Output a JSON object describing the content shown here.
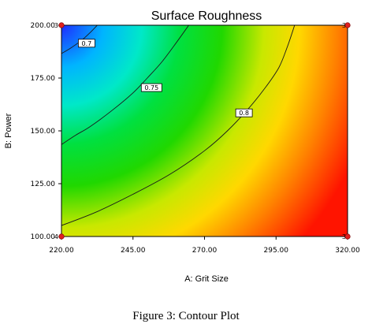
{
  "caption": "Figure 3: Contour Plot",
  "chart_data": {
    "type": "contour",
    "title": "Surface Roughness",
    "xlabel": "A: Grit Size",
    "ylabel": "B: Power",
    "xlim": [
      220,
      320
    ],
    "ylim": [
      100,
      200
    ],
    "x_ticks": [
      220,
      245,
      270,
      295,
      320
    ],
    "y_ticks": [
      100,
      125,
      150,
      175,
      200
    ],
    "x_tick_labels": [
      "220.00",
      "245.00",
      "270.00",
      "295.00",
      "320.00"
    ],
    "y_tick_labels": [
      "100.00",
      "125.00",
      "150.00",
      "175.00",
      "200.00"
    ],
    "contours": [
      {
        "level_label": "0.7",
        "points": [
          [
            232.5,
            200
          ],
          [
            230,
            196.5
          ],
          [
            227,
            192.8
          ],
          [
            223,
            189
          ],
          [
            220,
            186.6
          ]
        ],
        "label_at": [
          228.8,
          191.5
        ]
      },
      {
        "level_label": "0.75",
        "points": [
          [
            264.5,
            200
          ],
          [
            260,
            191.5
          ],
          [
            255,
            182.5
          ],
          [
            250,
            175
          ],
          [
            245,
            168
          ],
          [
            238,
            160
          ],
          [
            230,
            152
          ],
          [
            225,
            148
          ],
          [
            220,
            143.5
          ]
        ],
        "label_at": [
          251.5,
          170.5
        ]
      },
      {
        "level_label": "0.8",
        "points": [
          [
            301.5,
            200
          ],
          [
            299,
            190
          ],
          [
            296,
            180
          ],
          [
            291,
            170
          ],
          [
            285,
            160
          ],
          [
            278,
            150
          ],
          [
            270,
            140.6
          ],
          [
            258,
            129.5
          ],
          [
            245,
            120
          ],
          [
            232,
            111.5
          ],
          [
            220,
            105.2
          ]
        ],
        "label_at": [
          283.8,
          158.5
        ]
      }
    ],
    "design_points": [
      {
        "x": 220,
        "y": 200,
        "label": "3"
      },
      {
        "x": 320,
        "y": 200,
        "label": "3"
      },
      {
        "x": 220,
        "y": 100,
        "label": "4"
      },
      {
        "x": 320,
        "y": 100,
        "label": "3"
      }
    ],
    "colors": {
      "low": "#0000ff",
      "mid_low": "#00e5e5",
      "mid": "#00d000",
      "mid_high": "#f0f000",
      "high": "#ff0000",
      "contour_line": "#1a1a1a",
      "design_point": "#e02020"
    }
  }
}
